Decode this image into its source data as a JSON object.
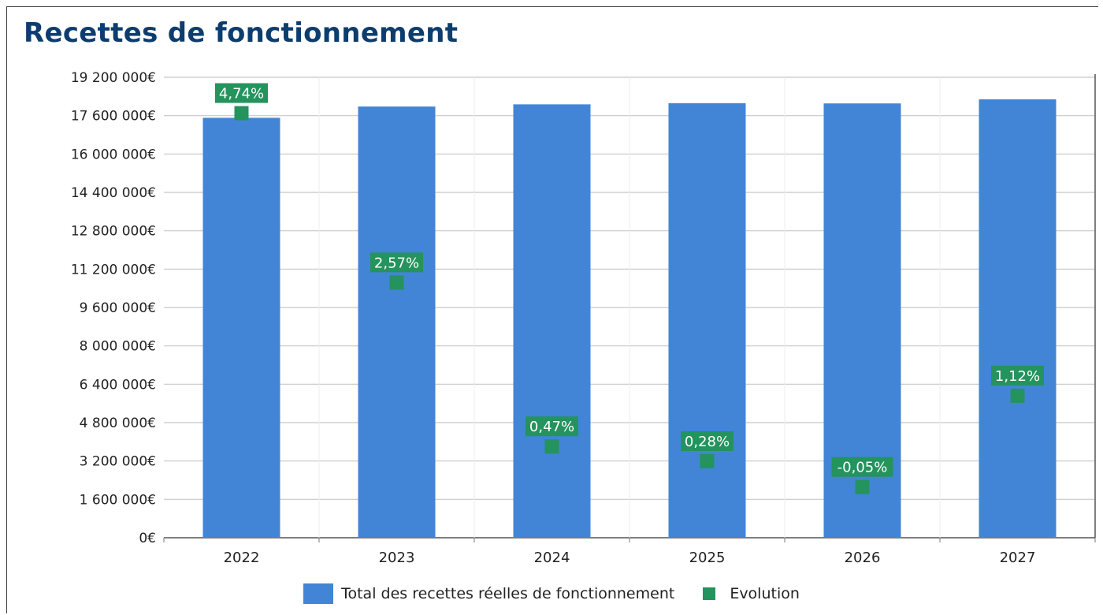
{
  "chart_data": {
    "type": "bar",
    "title": "Recettes de fonctionnement",
    "categories": [
      "2022",
      "2023",
      "2024",
      "2025",
      "2026",
      "2027"
    ],
    "series": [
      {
        "name": "Total des recettes réelles de fonctionnement",
        "kind": "bar",
        "axis": "left",
        "color": "#4285d6",
        "values": [
          17510000,
          17980000,
          18070000,
          18120000,
          18110000,
          18280000
        ]
      },
      {
        "name": "Evolution",
        "kind": "point",
        "axis": "right",
        "color": "#24935d",
        "values": [
          4.74,
          2.57,
          0.47,
          0.28,
          -0.05,
          1.12
        ],
        "labels": [
          "4,74%",
          "2,57%",
          "0,47%",
          "0,28%",
          "-0,05%",
          "1,12%"
        ]
      }
    ],
    "yticks": [
      "0€",
      "1 600 000€",
      "3 200 000€",
      "4 800 000€",
      "6 400 000€",
      "8 000 000€",
      "9 600 000€",
      "11 200 000€",
      "12 800 000€",
      "14 400 000€",
      "16 000 000€",
      "17 600 000€",
      "19 200 000€"
    ],
    "ylim": [
      0,
      19200000
    ],
    "y2lim": [
      -0.7,
      5.2
    ],
    "grid": true,
    "legend_position": "bottom"
  }
}
